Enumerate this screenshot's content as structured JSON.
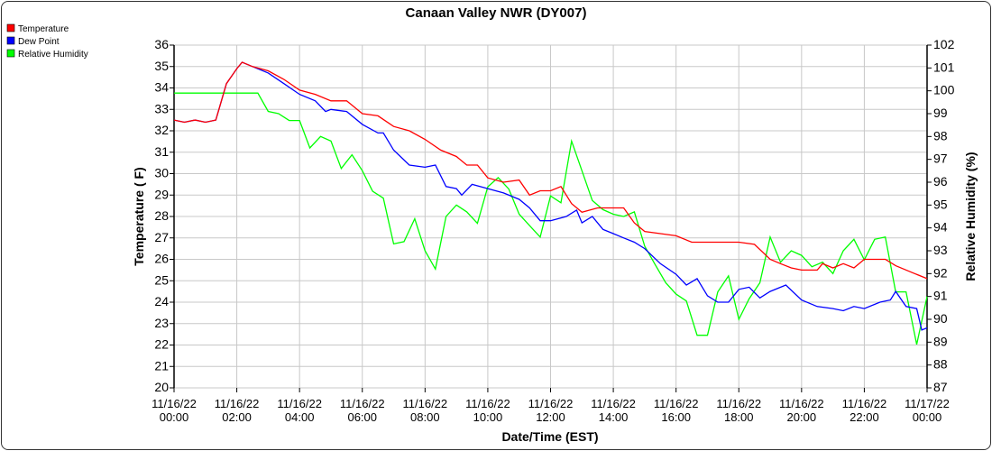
{
  "chart_data": {
    "type": "line",
    "title": "Canaan Valley NWR (DY007)",
    "xlabel": "Date/Time (EST)",
    "ylabel": "Temperature ( F)",
    "y2label": "Relative Humidity (%)",
    "ylim": [
      20,
      36
    ],
    "y2lim": [
      87,
      102
    ],
    "xlim_hours": [
      0,
      24
    ],
    "grid": true,
    "legend_position": "top-left",
    "x_ticks": [
      {
        "h": 0,
        "d": "11/16/22",
        "t": "00:00"
      },
      {
        "h": 2,
        "d": "11/16/22",
        "t": "02:00"
      },
      {
        "h": 4,
        "d": "11/16/22",
        "t": "04:00"
      },
      {
        "h": 6,
        "d": "11/16/22",
        "t": "06:00"
      },
      {
        "h": 8,
        "d": "11/16/22",
        "t": "08:00"
      },
      {
        "h": 10,
        "d": "11/16/22",
        "t": "10:00"
      },
      {
        "h": 12,
        "d": "11/16/22",
        "t": "12:00"
      },
      {
        "h": 14,
        "d": "11/16/22",
        "t": "14:00"
      },
      {
        "h": 16,
        "d": "11/16/22",
        "t": "16:00"
      },
      {
        "h": 18,
        "d": "11/16/22",
        "t": "18:00"
      },
      {
        "h": 20,
        "d": "11/16/22",
        "t": "20:00"
      },
      {
        "h": 22,
        "d": "11/16/22",
        "t": "22:00"
      },
      {
        "h": 24,
        "d": "11/17/22",
        "t": "00:00"
      }
    ],
    "series": [
      {
        "name": "Temperature",
        "color": "#ff0000",
        "axis": "left",
        "points": [
          [
            0,
            32.5
          ],
          [
            0.33,
            32.4
          ],
          [
            0.67,
            32.5
          ],
          [
            1,
            32.4
          ],
          [
            1.33,
            32.5
          ],
          [
            1.67,
            34.2
          ],
          [
            2,
            34.9
          ],
          [
            2.17,
            35.2
          ],
          [
            2.5,
            35.0
          ],
          [
            3,
            34.8
          ],
          [
            3.5,
            34.4
          ],
          [
            4,
            33.9
          ],
          [
            4.5,
            33.7
          ],
          [
            5,
            33.4
          ],
          [
            5.5,
            33.4
          ],
          [
            6,
            32.8
          ],
          [
            6.5,
            32.7
          ],
          [
            7,
            32.2
          ],
          [
            7.5,
            32.0
          ],
          [
            8,
            31.6
          ],
          [
            8.5,
            31.1
          ],
          [
            9,
            30.8
          ],
          [
            9.33,
            30.4
          ],
          [
            9.67,
            30.4
          ],
          [
            10,
            29.8
          ],
          [
            10.5,
            29.6
          ],
          [
            11,
            29.7
          ],
          [
            11.33,
            29.0
          ],
          [
            11.67,
            29.2
          ],
          [
            12,
            29.2
          ],
          [
            12.33,
            29.4
          ],
          [
            12.67,
            28.6
          ],
          [
            13,
            28.2
          ],
          [
            13.5,
            28.4
          ],
          [
            14,
            28.4
          ],
          [
            14.33,
            28.4
          ],
          [
            14.67,
            27.7
          ],
          [
            15,
            27.3
          ],
          [
            15.5,
            27.2
          ],
          [
            16,
            27.1
          ],
          [
            16.5,
            26.8
          ],
          [
            17,
            26.8
          ],
          [
            17.5,
            26.8
          ],
          [
            18,
            26.8
          ],
          [
            18.5,
            26.7
          ],
          [
            19,
            26.0
          ],
          [
            19.33,
            25.8
          ],
          [
            19.67,
            25.6
          ],
          [
            20,
            25.5
          ],
          [
            20.5,
            25.5
          ],
          [
            20.67,
            25.8
          ],
          [
            21,
            25.6
          ],
          [
            21.33,
            25.8
          ],
          [
            21.67,
            25.6
          ],
          [
            22,
            26.0
          ],
          [
            22.67,
            26.0
          ],
          [
            23,
            25.7
          ],
          [
            23.5,
            25.4
          ],
          [
            24,
            25.1
          ]
        ]
      },
      {
        "name": "Dew Point",
        "color": "#0000ff",
        "axis": "left",
        "points": [
          [
            0,
            32.5
          ],
          [
            0.33,
            32.4
          ],
          [
            0.67,
            32.5
          ],
          [
            1,
            32.4
          ],
          [
            1.33,
            32.5
          ],
          [
            1.67,
            34.2
          ],
          [
            2,
            34.9
          ],
          [
            2.17,
            35.2
          ],
          [
            2.5,
            35.0
          ],
          [
            3,
            34.7
          ],
          [
            3.5,
            34.2
          ],
          [
            4,
            33.7
          ],
          [
            4.5,
            33.4
          ],
          [
            4.83,
            32.9
          ],
          [
            5,
            33.0
          ],
          [
            5.5,
            32.9
          ],
          [
            6,
            32.3
          ],
          [
            6.5,
            31.9
          ],
          [
            6.67,
            31.9
          ],
          [
            7,
            31.1
          ],
          [
            7.5,
            30.4
          ],
          [
            8,
            30.3
          ],
          [
            8.33,
            30.4
          ],
          [
            8.67,
            29.4
          ],
          [
            9,
            29.3
          ],
          [
            9.17,
            29.0
          ],
          [
            9.5,
            29.5
          ],
          [
            10,
            29.3
          ],
          [
            10.5,
            29.1
          ],
          [
            11,
            28.8
          ],
          [
            11.33,
            28.4
          ],
          [
            11.67,
            27.8
          ],
          [
            12,
            27.8
          ],
          [
            12.5,
            28.0
          ],
          [
            12.83,
            28.3
          ],
          [
            13,
            27.7
          ],
          [
            13.33,
            28.0
          ],
          [
            13.67,
            27.4
          ],
          [
            14,
            27.2
          ],
          [
            14.33,
            27.0
          ],
          [
            14.67,
            26.8
          ],
          [
            15,
            26.5
          ],
          [
            15.5,
            25.8
          ],
          [
            16,
            25.3
          ],
          [
            16.33,
            24.8
          ],
          [
            16.67,
            25.1
          ],
          [
            17,
            24.3
          ],
          [
            17.33,
            24.0
          ],
          [
            17.67,
            24.0
          ],
          [
            18,
            24.6
          ],
          [
            18.33,
            24.7
          ],
          [
            18.67,
            24.2
          ],
          [
            19,
            24.5
          ],
          [
            19.5,
            24.8
          ],
          [
            20,
            24.1
          ],
          [
            20.5,
            23.8
          ],
          [
            21,
            23.7
          ],
          [
            21.33,
            23.6
          ],
          [
            21.67,
            23.8
          ],
          [
            22,
            23.7
          ],
          [
            22.5,
            24.0
          ],
          [
            22.83,
            24.1
          ],
          [
            23,
            24.5
          ],
          [
            23.33,
            23.8
          ],
          [
            23.67,
            23.7
          ],
          [
            23.83,
            22.7
          ],
          [
            24,
            22.8
          ]
        ]
      },
      {
        "name": "Relative Humidity",
        "color": "#00ff00",
        "axis": "right",
        "points": [
          [
            0,
            99.9
          ],
          [
            2.67,
            99.9
          ],
          [
            3,
            99.1
          ],
          [
            3.33,
            99.0
          ],
          [
            3.67,
            98.7
          ],
          [
            4,
            98.7
          ],
          [
            4.33,
            97.5
          ],
          [
            4.67,
            98.0
          ],
          [
            5,
            97.8
          ],
          [
            5.33,
            96.6
          ],
          [
            5.67,
            97.2
          ],
          [
            6,
            96.5
          ],
          [
            6.33,
            95.6
          ],
          [
            6.67,
            95.3
          ],
          [
            7,
            93.3
          ],
          [
            7.33,
            93.4
          ],
          [
            7.67,
            94.4
          ],
          [
            8,
            93.0
          ],
          [
            8.33,
            92.2
          ],
          [
            8.67,
            94.5
          ],
          [
            9,
            95.0
          ],
          [
            9.33,
            94.7
          ],
          [
            9.67,
            94.2
          ],
          [
            10,
            95.8
          ],
          [
            10.33,
            96.2
          ],
          [
            10.67,
            95.7
          ],
          [
            11,
            94.6
          ],
          [
            11.33,
            94.1
          ],
          [
            11.67,
            93.6
          ],
          [
            12,
            95.4
          ],
          [
            12.33,
            95.1
          ],
          [
            12.67,
            97.8
          ],
          [
            13,
            96.5
          ],
          [
            13.33,
            95.2
          ],
          [
            13.67,
            94.8
          ],
          [
            14,
            94.6
          ],
          [
            14.33,
            94.5
          ],
          [
            14.67,
            94.7
          ],
          [
            15,
            93.2
          ],
          [
            15.33,
            92.4
          ],
          [
            15.67,
            91.6
          ],
          [
            16,
            91.1
          ],
          [
            16.33,
            90.8
          ],
          [
            16.67,
            89.3
          ],
          [
            17,
            89.3
          ],
          [
            17.33,
            91.2
          ],
          [
            17.67,
            91.9
          ],
          [
            18,
            90.0
          ],
          [
            18.33,
            90.9
          ],
          [
            18.67,
            91.6
          ],
          [
            19,
            93.6
          ],
          [
            19.33,
            92.5
          ],
          [
            19.67,
            93.0
          ],
          [
            20,
            92.8
          ],
          [
            20.33,
            92.3
          ],
          [
            20.67,
            92.5
          ],
          [
            21,
            92.0
          ],
          [
            21.33,
            93.0
          ],
          [
            21.67,
            93.5
          ],
          [
            22,
            92.6
          ],
          [
            22.33,
            93.5
          ],
          [
            22.67,
            93.6
          ],
          [
            23,
            91.2
          ],
          [
            23.33,
            91.2
          ],
          [
            23.67,
            88.9
          ],
          [
            24,
            91.0
          ]
        ]
      }
    ]
  }
}
